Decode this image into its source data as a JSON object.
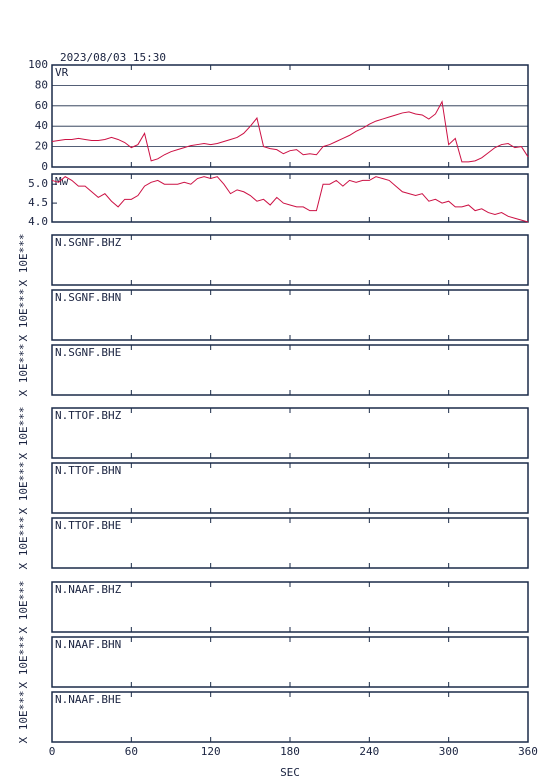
{
  "chart_data": {
    "type": "line",
    "title": "2023/08/03 15:30",
    "xlabel": "SEC",
    "xlim": [
      0,
      360
    ],
    "xticks": [
      0,
      60,
      120,
      180,
      240,
      300,
      360
    ],
    "x": [
      0,
      5,
      10,
      15,
      20,
      25,
      30,
      35,
      40,
      45,
      50,
      55,
      60,
      65,
      70,
      75,
      80,
      85,
      90,
      95,
      100,
      105,
      110,
      115,
      120,
      125,
      130,
      135,
      140,
      145,
      150,
      155,
      160,
      165,
      170,
      175,
      180,
      185,
      190,
      195,
      200,
      205,
      210,
      215,
      220,
      225,
      230,
      235,
      240,
      245,
      250,
      255,
      260,
      265,
      270,
      275,
      280,
      285,
      290,
      295,
      300,
      305,
      310,
      315,
      320,
      325,
      330,
      335,
      340,
      345,
      350,
      355,
      360
    ],
    "panels": [
      {
        "label": "VR",
        "color": "#cc1144",
        "grid": true,
        "ylim": [
          0,
          100
        ],
        "yticks": [
          0,
          20,
          40,
          60,
          80,
          100
        ],
        "values": [
          25,
          26,
          27,
          27,
          28,
          27,
          26,
          26,
          27,
          29,
          27,
          24,
          19,
          22,
          33,
          6,
          8,
          12,
          15,
          17,
          19,
          21,
          22,
          23,
          22,
          23,
          25,
          27,
          29,
          33,
          40,
          48,
          20,
          18,
          17,
          13,
          16,
          17,
          12,
          13,
          12,
          20,
          22,
          25,
          28,
          31,
          35,
          38,
          42,
          45,
          47,
          49,
          51,
          53,
          54,
          52,
          51,
          47,
          52,
          64,
          22,
          28,
          5,
          5,
          6,
          9,
          14,
          19,
          22,
          23,
          19,
          20,
          10
        ]
      },
      {
        "label": "Mw",
        "color": "#cc1144",
        "grid": false,
        "ylim": [
          4.0,
          5.27
        ],
        "yticks": [
          {
            "value": 4,
            "label": "4.0"
          },
          {
            "value": 4.5,
            "label": "4.5"
          },
          {
            "value": 5,
            "label": "5.0"
          }
        ],
        "values": [
          5.1,
          5.05,
          5.2,
          5.1,
          4.95,
          4.95,
          4.8,
          4.65,
          4.75,
          4.55,
          4.4,
          4.6,
          4.6,
          4.7,
          4.95,
          5.05,
          5.1,
          5.0,
          5.0,
          5.0,
          5.05,
          5.0,
          5.15,
          5.2,
          5.15,
          5.2,
          5.0,
          4.75,
          4.85,
          4.8,
          4.7,
          4.55,
          4.6,
          4.45,
          4.65,
          4.5,
          4.45,
          4.4,
          4.4,
          4.3,
          4.3,
          5.0,
          5.0,
          5.1,
          4.95,
          5.1,
          5.05,
          5.1,
          5.1,
          5.2,
          5.15,
          5.1,
          4.95,
          4.8,
          4.75,
          4.7,
          4.75,
          4.55,
          4.6,
          4.5,
          4.55,
          4.4,
          4.4,
          4.45,
          4.3,
          4.35,
          4.25,
          4.2,
          4.25,
          4.15,
          4.1,
          4.05,
          4.0
        ]
      },
      {
        "label": "N.SGNF.BHZ",
        "ylabel": "X 10E***"
      },
      {
        "label": "N.SGNF.BHN",
        "ylabel": "X 10E***"
      },
      {
        "label": "N.SGNF.BHE",
        "ylabel": "X 10E***"
      },
      {
        "label": "N.TTOF.BHZ",
        "ylabel": "X 10E***"
      },
      {
        "label": "N.TTOF.BHN",
        "ylabel": "X 10E***"
      },
      {
        "label": "N.TTOF.BHE",
        "ylabel": "X 10E***"
      },
      {
        "label": "N.NAAF.BHZ",
        "ylabel": "X 10E***"
      },
      {
        "label": "N.NAAF.BHN",
        "ylabel": "X 10E***"
      },
      {
        "label": "N.NAAF.BHE",
        "ylabel": "X 10E***"
      }
    ]
  }
}
